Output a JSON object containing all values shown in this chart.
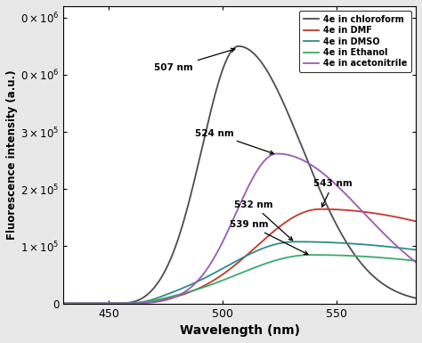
{
  "xlabel": "Wavelength (nm)",
  "ylabel": "Fluorescence intensity (a.u.)",
  "xlim": [
    430,
    585
  ],
  "ylim": [
    0,
    520000
  ],
  "yticks": [
    0,
    100000,
    200000,
    300000,
    400000,
    500000
  ],
  "xticks": [
    450,
    500,
    550
  ],
  "legend_entries": [
    "4e in chloroform",
    "4e in DMF",
    "4e in DMSO",
    "4e in Ethanol",
    "4e in acetonitrile"
  ],
  "colors": {
    "chloroform": "#4d4d4d",
    "DMF": "#c0392b",
    "DMSO": "#2e8b8b",
    "Ethanol": "#3aaa6a",
    "acetonitrile": "#9b59b6"
  },
  "background_color": "#ffffff",
  "fig_bg": "#e8e8e8"
}
